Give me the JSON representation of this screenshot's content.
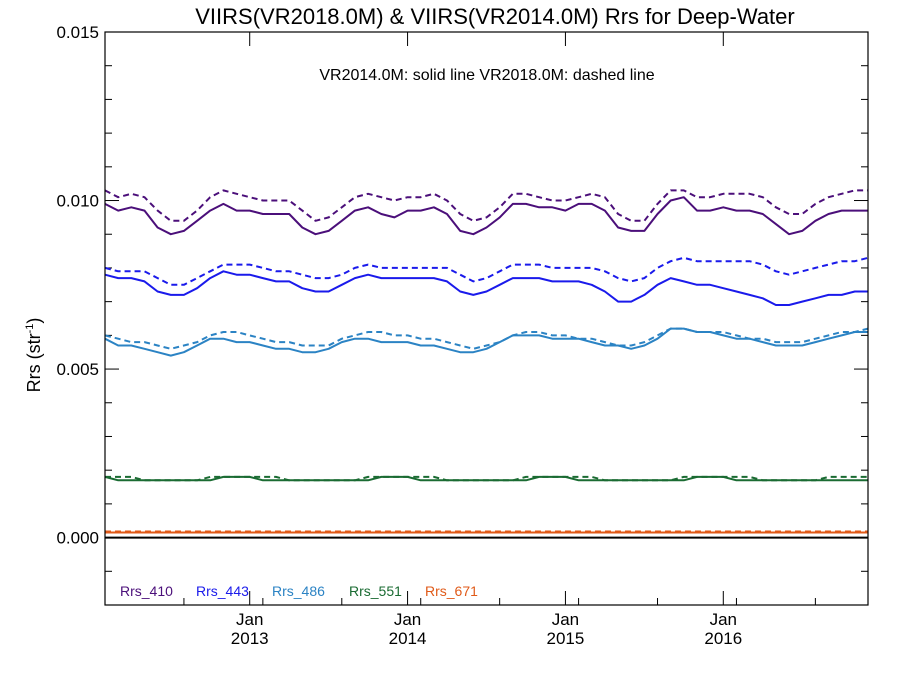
{
  "chart_data": {
    "type": "line",
    "title": "VIIRS(VR2018.0M) & VIIRS(VR2014.0M)  Rrs for Deep-Water",
    "annotation": "VR2014.0M: solid line   VR2018.0M: dashed line",
    "ylabel_main": "Rrs (str",
    "ylabel_sup": "-1",
    "ylabel_close": ")",
    "ylim": [
      -0.002,
      0.015
    ],
    "xlim": [
      "2012-02",
      "2016-12"
    ],
    "yticks": [
      {
        "value": 0.0,
        "label": "0.000"
      },
      {
        "value": 0.005,
        "label": "0.005"
      },
      {
        "value": 0.01,
        "label": "0.010"
      },
      {
        "value": 0.015,
        "label": "0.015"
      }
    ],
    "xticks": [
      {
        "x": "2013-01",
        "month": "Jan",
        "year": "2013"
      },
      {
        "x": "2014-01",
        "month": "Jan",
        "year": "2014"
      },
      {
        "x": "2015-01",
        "month": "Jan",
        "year": "2015"
      },
      {
        "x": "2016-01",
        "month": "Jan",
        "year": "2016"
      }
    ],
    "zero_line": 0.0,
    "x": [
      "2012-02",
      "2012-03",
      "2012-04",
      "2012-05",
      "2012-06",
      "2012-07",
      "2012-08",
      "2012-09",
      "2012-10",
      "2012-11",
      "2012-12",
      "2013-01",
      "2013-02",
      "2013-03",
      "2013-04",
      "2013-05",
      "2013-06",
      "2013-07",
      "2013-08",
      "2013-09",
      "2013-10",
      "2013-11",
      "2013-12",
      "2014-01",
      "2014-02",
      "2014-03",
      "2014-04",
      "2014-05",
      "2014-06",
      "2014-07",
      "2014-08",
      "2014-09",
      "2014-10",
      "2014-11",
      "2014-12",
      "2015-01",
      "2015-02",
      "2015-03",
      "2015-04",
      "2015-05",
      "2015-06",
      "2015-07",
      "2015-08",
      "2015-09",
      "2015-10",
      "2015-11",
      "2015-12",
      "2016-01",
      "2016-02",
      "2016-03",
      "2016-04",
      "2016-05",
      "2016-06",
      "2016-07",
      "2016-08",
      "2016-09",
      "2016-10",
      "2016-11",
      "2016-12"
    ],
    "series": [
      {
        "name": "Rrs_410",
        "color": "#4b0f7a",
        "line": "solid",
        "values": [
          0.0099,
          0.0097,
          0.0098,
          0.0097,
          0.0092,
          0.009,
          0.0091,
          0.0094,
          0.0097,
          0.0099,
          0.0097,
          0.0097,
          0.0096,
          0.0096,
          0.0096,
          0.0092,
          0.009,
          0.0091,
          0.0094,
          0.0097,
          0.0098,
          0.0096,
          0.0095,
          0.0097,
          0.0097,
          0.0098,
          0.0096,
          0.0091,
          0.009,
          0.0092,
          0.0095,
          0.0099,
          0.0099,
          0.0098,
          0.0098,
          0.0097,
          0.0099,
          0.0099,
          0.0097,
          0.0092,
          0.0091,
          0.0091,
          0.0096,
          0.01,
          0.0101,
          0.0097,
          0.0097,
          0.0098,
          0.0097,
          0.0097,
          0.0096,
          0.0093,
          0.009,
          0.0091,
          0.0094,
          0.0096,
          0.0097,
          0.0097,
          0.0097
        ]
      },
      {
        "name": "Rrs_410_VR2018.0M",
        "color": "#4b0f7a",
        "line": "dashed",
        "values": [
          0.0103,
          0.0101,
          0.0102,
          0.0101,
          0.0097,
          0.0094,
          0.0094,
          0.0097,
          0.0101,
          0.0103,
          0.0102,
          0.0101,
          0.01,
          0.01,
          0.01,
          0.0097,
          0.0094,
          0.0095,
          0.0098,
          0.0101,
          0.0102,
          0.0101,
          0.01,
          0.0101,
          0.0101,
          0.0102,
          0.01,
          0.0096,
          0.0094,
          0.0095,
          0.0098,
          0.0102,
          0.0102,
          0.0101,
          0.01,
          0.01,
          0.0101,
          0.0102,
          0.0101,
          0.0096,
          0.0094,
          0.0094,
          0.0099,
          0.0103,
          0.0103,
          0.0101,
          0.0101,
          0.0102,
          0.0102,
          0.0102,
          0.0101,
          0.0098,
          0.0096,
          0.0096,
          0.0099,
          0.0101,
          0.0102,
          0.0103,
          0.0103
        ]
      },
      {
        "name": "Rrs_443",
        "color": "#1a1aeb",
        "line": "solid",
        "values": [
          0.0078,
          0.0077,
          0.0077,
          0.0076,
          0.0073,
          0.0072,
          0.0072,
          0.0074,
          0.0077,
          0.0079,
          0.0078,
          0.0078,
          0.0077,
          0.0076,
          0.0076,
          0.0074,
          0.0073,
          0.0073,
          0.0075,
          0.0077,
          0.0078,
          0.0077,
          0.0077,
          0.0077,
          0.0077,
          0.0077,
          0.0076,
          0.0073,
          0.0072,
          0.0073,
          0.0075,
          0.0077,
          0.0077,
          0.0077,
          0.0076,
          0.0076,
          0.0076,
          0.0075,
          0.0073,
          0.007,
          0.007,
          0.0072,
          0.0075,
          0.0077,
          0.0076,
          0.0075,
          0.0075,
          0.0074,
          0.0073,
          0.0072,
          0.0071,
          0.0069,
          0.0069,
          0.007,
          0.0071,
          0.0072,
          0.0072,
          0.0073,
          0.0073
        ]
      },
      {
        "name": "Rrs_443_VR2018.0M",
        "color": "#1a1aeb",
        "line": "dashed",
        "values": [
          0.008,
          0.0079,
          0.0079,
          0.0079,
          0.0077,
          0.0075,
          0.0075,
          0.0077,
          0.0079,
          0.0081,
          0.0081,
          0.0081,
          0.008,
          0.0079,
          0.0079,
          0.0078,
          0.0077,
          0.0077,
          0.0078,
          0.008,
          0.0081,
          0.008,
          0.008,
          0.008,
          0.008,
          0.008,
          0.008,
          0.0078,
          0.0076,
          0.0077,
          0.0079,
          0.0081,
          0.0081,
          0.0081,
          0.008,
          0.008,
          0.008,
          0.008,
          0.0079,
          0.0077,
          0.0076,
          0.0077,
          0.008,
          0.0082,
          0.0083,
          0.0082,
          0.0082,
          0.0082,
          0.0082,
          0.0082,
          0.0081,
          0.0079,
          0.0078,
          0.0079,
          0.008,
          0.0081,
          0.0082,
          0.0082,
          0.0083
        ]
      },
      {
        "name": "Rrs_486",
        "color": "#2b83c4",
        "line": "solid",
        "values": [
          0.0059,
          0.0057,
          0.0057,
          0.0056,
          0.0055,
          0.0054,
          0.0055,
          0.0057,
          0.0059,
          0.0059,
          0.0058,
          0.0058,
          0.0057,
          0.0056,
          0.0056,
          0.0055,
          0.0055,
          0.0056,
          0.0058,
          0.0059,
          0.0059,
          0.0058,
          0.0058,
          0.0058,
          0.0057,
          0.0057,
          0.0056,
          0.0055,
          0.0055,
          0.0056,
          0.0058,
          0.006,
          0.006,
          0.006,
          0.0059,
          0.0059,
          0.0059,
          0.0058,
          0.0057,
          0.0057,
          0.0056,
          0.0057,
          0.0059,
          0.0062,
          0.0062,
          0.0061,
          0.0061,
          0.006,
          0.0059,
          0.0059,
          0.0058,
          0.0057,
          0.0057,
          0.0057,
          0.0058,
          0.0059,
          0.006,
          0.0061,
          0.0061
        ]
      },
      {
        "name": "Rrs_486_VR2018.0M",
        "color": "#2b83c4",
        "line": "dashed",
        "values": [
          0.006,
          0.0059,
          0.0058,
          0.0058,
          0.0057,
          0.0056,
          0.0057,
          0.0058,
          0.006,
          0.0061,
          0.0061,
          0.006,
          0.0059,
          0.0058,
          0.0058,
          0.0057,
          0.0057,
          0.0057,
          0.0059,
          0.006,
          0.0061,
          0.0061,
          0.006,
          0.006,
          0.0059,
          0.0059,
          0.0058,
          0.0057,
          0.0056,
          0.0057,
          0.0058,
          0.006,
          0.0061,
          0.0061,
          0.006,
          0.006,
          0.0059,
          0.0059,
          0.0058,
          0.0057,
          0.0057,
          0.0058,
          0.006,
          0.0062,
          0.0062,
          0.0061,
          0.0061,
          0.0061,
          0.006,
          0.0059,
          0.0059,
          0.0058,
          0.0058,
          0.0058,
          0.0059,
          0.006,
          0.0061,
          0.0061,
          0.0062
        ]
      },
      {
        "name": "Rrs_551",
        "color": "#1a6b32",
        "line": "solid",
        "values": [
          0.0018,
          0.0017,
          0.0017,
          0.0017,
          0.0017,
          0.0017,
          0.0017,
          0.0017,
          0.0017,
          0.0018,
          0.0018,
          0.0018,
          0.0017,
          0.0017,
          0.0017,
          0.0017,
          0.0017,
          0.0017,
          0.0017,
          0.0017,
          0.0017,
          0.0018,
          0.0018,
          0.0018,
          0.0017,
          0.0017,
          0.0017,
          0.0017,
          0.0017,
          0.0017,
          0.0017,
          0.0017,
          0.0017,
          0.0018,
          0.0018,
          0.0018,
          0.0017,
          0.0017,
          0.0017,
          0.0017,
          0.0017,
          0.0017,
          0.0017,
          0.0017,
          0.0017,
          0.0018,
          0.0018,
          0.0018,
          0.0017,
          0.0017,
          0.0017,
          0.0017,
          0.0017,
          0.0017,
          0.0017,
          0.0017,
          0.0017,
          0.0017,
          0.0017
        ]
      },
      {
        "name": "Rrs_551_VR2018.0M",
        "color": "#1a6b32",
        "line": "dashed",
        "values": [
          0.0018,
          0.0018,
          0.0018,
          0.0017,
          0.0017,
          0.0017,
          0.0017,
          0.0017,
          0.0018,
          0.0018,
          0.0018,
          0.0018,
          0.0018,
          0.0018,
          0.0017,
          0.0017,
          0.0017,
          0.0017,
          0.0017,
          0.0017,
          0.0018,
          0.0018,
          0.0018,
          0.0018,
          0.0018,
          0.0018,
          0.0017,
          0.0017,
          0.0017,
          0.0017,
          0.0017,
          0.0017,
          0.0018,
          0.0018,
          0.0018,
          0.0018,
          0.0018,
          0.0018,
          0.0017,
          0.0017,
          0.0017,
          0.0017,
          0.0017,
          0.0017,
          0.0018,
          0.0018,
          0.0018,
          0.0018,
          0.0018,
          0.0018,
          0.0017,
          0.0017,
          0.0017,
          0.0017,
          0.0017,
          0.0018,
          0.0018,
          0.0018,
          0.0018
        ]
      },
      {
        "name": "Rrs_671",
        "color": "#e05a18",
        "line": "solid",
        "values": [
          0.00015,
          0.00015,
          0.00015,
          0.00015,
          0.00015,
          0.00015,
          0.00015,
          0.00015,
          0.00015,
          0.00015,
          0.00015,
          0.00015,
          0.00015,
          0.00015,
          0.00015,
          0.00015,
          0.00015,
          0.00015,
          0.00015,
          0.00015,
          0.00015,
          0.00015,
          0.00015,
          0.00015,
          0.00015,
          0.00015,
          0.00015,
          0.00015,
          0.00015,
          0.00015,
          0.00015,
          0.00015,
          0.00015,
          0.00015,
          0.00015,
          0.00015,
          0.00015,
          0.00015,
          0.00015,
          0.00015,
          0.00015,
          0.00015,
          0.00015,
          0.00015,
          0.00015,
          0.00015,
          0.00015,
          0.00015,
          0.00015,
          0.00015,
          0.00015,
          0.00015,
          0.00015,
          0.00015,
          0.00015,
          0.00015,
          0.00015,
          0.00015,
          0.00015
        ]
      },
      {
        "name": "Rrs_671_VR2018.0M",
        "color": "#e05a18",
        "line": "dashed",
        "values": [
          0.00018,
          0.00018,
          0.00018,
          0.00018,
          0.00018,
          0.00018,
          0.00018,
          0.00018,
          0.00018,
          0.00018,
          0.00018,
          0.00018,
          0.00018,
          0.00018,
          0.00018,
          0.00018,
          0.00018,
          0.00018,
          0.00018,
          0.00018,
          0.00018,
          0.00018,
          0.00018,
          0.00018,
          0.00018,
          0.00018,
          0.00018,
          0.00018,
          0.00018,
          0.00018,
          0.00018,
          0.00018,
          0.00018,
          0.00018,
          0.00018,
          0.00018,
          0.00018,
          0.00018,
          0.00018,
          0.00018,
          0.00018,
          0.00018,
          0.00018,
          0.00018,
          0.00018,
          0.00018,
          0.00018,
          0.00018,
          0.00018,
          0.00018,
          0.00018,
          0.00018,
          0.00018,
          0.00018,
          0.00018,
          0.00018,
          0.00018,
          0.00018,
          0.00018
        ]
      }
    ],
    "legend": [
      {
        "label": "Rrs_410",
        "color": "#4b0f7a"
      },
      {
        "label": "Rrs_443",
        "color": "#1a1aeb"
      },
      {
        "label": "Rrs_486",
        "color": "#2b83c4"
      },
      {
        "label": "Rrs_551",
        "color": "#1a6b32"
      },
      {
        "label": "Rrs_671",
        "color": "#e05a18"
      }
    ],
    "legend_position": "bottom-left"
  }
}
